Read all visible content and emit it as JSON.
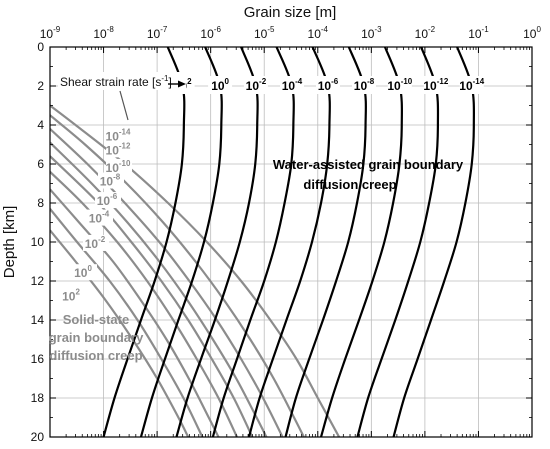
{
  "chart_data": {
    "type": "line",
    "title": "",
    "xlabel": "Grain size [m]",
    "ylabel": "Depth [km]",
    "x_scale": "log",
    "x_position": "top",
    "xlim": [
      1e-09,
      1
    ],
    "ylim": [
      0,
      20
    ],
    "y_inverted": true,
    "grid": true,
    "x_ticks": [
      {
        "base": "10",
        "exp": "-9"
      },
      {
        "base": "10",
        "exp": "-8"
      },
      {
        "base": "10",
        "exp": "-7"
      },
      {
        "base": "10",
        "exp": "-6"
      },
      {
        "base": "10",
        "exp": "-5"
      },
      {
        "base": "10",
        "exp": "-4"
      },
      {
        "base": "10",
        "exp": "-3"
      },
      {
        "base": "10",
        "exp": "-2"
      },
      {
        "base": "10",
        "exp": "-1"
      },
      {
        "base": "10",
        "exp": "0"
      }
    ],
    "y_ticks": [
      "0",
      "2",
      "4",
      "6",
      "8",
      "10",
      "12",
      "14",
      "16",
      "18",
      "20"
    ],
    "colors": {
      "water": "#000000",
      "solid": "#8c8c8c",
      "grid": "#bdbdbd"
    },
    "water_series_label": "Water-assisted grain boundary diffusion creep",
    "water_series_label_lines": [
      "Water-assisted grain boundary",
      "diffusion creep"
    ],
    "solid_series_label_lines": [
      "Solid-state",
      "grain boundary",
      "diffusion creep"
    ],
    "rate_annotation": {
      "text": "Shear strain rate [s",
      "sup": "-1",
      "close": "]"
    },
    "water_series": [
      {
        "rate": {
          "base": "10",
          "exp": "2"
        },
        "depth": [
          0,
          2,
          4,
          6,
          8,
          10,
          12,
          14,
          16,
          18,
          20
        ],
        "grain_size": [
          1.58e-07,
          3e-07,
          3.16e-07,
          2.9e-07,
          2.2e-07,
          1.5e-07,
          9e-08,
          5e-08,
          2.8e-08,
          1.6e-08,
          1e-08
        ]
      },
      {
        "rate": {
          "base": "10",
          "exp": "0"
        },
        "depth": [
          0,
          2,
          4,
          6,
          8,
          10,
          12,
          14,
          16,
          18,
          20
        ],
        "grain_size": [
          7.9e-07,
          1.5e-06,
          1.58e-06,
          1.45e-06,
          1.1e-06,
          7.5e-07,
          4.5e-07,
          2.5e-07,
          1.4e-07,
          8e-08,
          5e-08
        ]
      },
      {
        "rate": {
          "base": "10",
          "exp": "-2"
        },
        "depth": [
          0,
          2,
          4,
          6,
          8,
          10,
          12,
          14,
          16,
          18,
          20
        ],
        "grain_size": [
          3.7e-06,
          7e-06,
          7.4e-06,
          6.8e-06,
          5.2e-06,
          3.5e-06,
          2.1e-06,
          1.2e-06,
          6.6e-07,
          3.7e-07,
          2.3e-07
        ]
      },
      {
        "rate": {
          "base": "10",
          "exp": "-4"
        },
        "depth": [
          0,
          2,
          4,
          6,
          8,
          10,
          12,
          14,
          16,
          18,
          20
        ],
        "grain_size": [
          1.7e-05,
          3.3e-05,
          3.5e-05,
          3.2e-05,
          2.4e-05,
          1.65e-05,
          1e-05,
          5.5e-06,
          3.1e-06,
          1.75e-06,
          1.1e-06
        ]
      },
      {
        "rate": {
          "base": "10",
          "exp": "-6"
        },
        "depth": [
          0,
          2,
          4,
          6,
          8,
          10,
          12,
          14,
          16,
          18,
          20
        ],
        "grain_size": [
          8e-05,
          0.000155,
          0.000165,
          0.00015,
          0.000115,
          7.8e-05,
          4.7e-05,
          2.6e-05,
          1.45e-05,
          8.2e-06,
          5.2e-06
        ]
      },
      {
        "rate": {
          "base": "10",
          "exp": "-8"
        },
        "depth": [
          0,
          2,
          4,
          6,
          8,
          10,
          12,
          14,
          16,
          18,
          20
        ],
        "grain_size": [
          0.00038,
          0.00073,
          0.00078,
          0.00071,
          0.00054,
          0.00037,
          0.00022,
          0.000125,
          6.9e-05,
          3.9e-05,
          2.5e-05
        ]
      },
      {
        "rate": {
          "base": "10",
          "exp": "-10"
        },
        "depth": [
          0,
          2,
          4,
          6,
          8,
          10,
          12,
          14,
          16,
          18,
          20
        ],
        "grain_size": [
          0.0018,
          0.0034,
          0.0037,
          0.00335,
          0.00255,
          0.00175,
          0.00105,
          0.00059,
          0.000325,
          0.000185,
          0.000115
        ]
      },
      {
        "rate": {
          "base": "10",
          "exp": "-12"
        },
        "depth": [
          0,
          2,
          4,
          6,
          8,
          10,
          12,
          14,
          16,
          18,
          20
        ],
        "grain_size": [
          0.0085,
          0.016,
          0.0175,
          0.016,
          0.012,
          0.0082,
          0.0049,
          0.0028,
          0.00155,
          0.00087,
          0.00055
        ]
      },
      {
        "rate": {
          "base": "10",
          "exp": "-14"
        },
        "depth": [
          0,
          2,
          4,
          6,
          8,
          10,
          12,
          14,
          16,
          18,
          20
        ],
        "grain_size": [
          0.04,
          0.075,
          0.082,
          0.075,
          0.057,
          0.039,
          0.023,
          0.013,
          0.0073,
          0.0041,
          0.0026
        ]
      }
    ],
    "solid_series": [
      {
        "rate": {
          "base": "10",
          "exp": "-14"
        },
        "depth": [
          3,
          4,
          6,
          8,
          10,
          12,
          14,
          16,
          18,
          20
        ],
        "grain_size": [
          1e-09,
          3e-09,
          2.5e-08,
          1.6e-07,
          8.5e-07,
          3.7e-06,
          1.3e-05,
          4e-05,
          0.0001,
          0.00025
        ]
      },
      {
        "rate": {
          "base": "10",
          "exp": "-12"
        },
        "depth": [
          3.5,
          5,
          7,
          9,
          11,
          13,
          15,
          17,
          19,
          20
        ],
        "grain_size": [
          1e-09,
          4.5e-09,
          2.7e-08,
          1.3e-07,
          5.2e-07,
          1.8e-06,
          5.5e-06,
          1.5e-05,
          3.6e-05,
          5.5e-05
        ]
      },
      {
        "rate": {
          "base": "10",
          "exp": "-10"
        },
        "depth": [
          4.2,
          6,
          8,
          10,
          12,
          14,
          16,
          18,
          20
        ],
        "grain_size": [
          1e-09,
          5e-09,
          2.5e-08,
          1.1e-07,
          4e-07,
          1.3e-06,
          3.7e-06,
          9.5e-06,
          2.2e-05
        ]
      },
      {
        "rate": {
          "base": "10",
          "exp": "-8"
        },
        "depth": [
          4.9,
          7,
          9,
          11,
          13,
          15,
          17,
          19,
          20
        ],
        "grain_size": [
          1e-09,
          6e-09,
          2.8e-08,
          1.1e-07,
          3.7e-07,
          1.1e-06,
          3e-06,
          7.2e-06,
          1.1e-05
        ]
      },
      {
        "rate": {
          "base": "10",
          "exp": "-6"
        },
        "depth": [
          5.6,
          8,
          10,
          12,
          14,
          16,
          18,
          20
        ],
        "grain_size": [
          1e-09,
          8e-09,
          3.3e-08,
          1.2e-07,
          3.8e-07,
          1.05e-06,
          2.7e-06,
          6e-06
        ]
      },
      {
        "rate": {
          "base": "10",
          "exp": "-4"
        },
        "depth": [
          6.4,
          8,
          10,
          12,
          14,
          16,
          18,
          20
        ],
        "grain_size": [
          1e-09,
          4e-09,
          1.8e-08,
          6.5e-08,
          2e-07,
          5.5e-07,
          1.4e-06,
          3.1e-06
        ]
      },
      {
        "rate": {
          "base": "10",
          "exp": "-2"
        },
        "depth": [
          7.3,
          9,
          11,
          13,
          15,
          17,
          19,
          20
        ],
        "grain_size": [
          1e-09,
          3.5e-09,
          1.5e-08,
          5e-08,
          1.5e-07,
          3.9e-07,
          9.2e-07,
          1.4e-06
        ]
      },
      {
        "rate": {
          "base": "10",
          "exp": "0"
        },
        "depth": [
          8.3,
          10,
          12,
          14,
          16,
          18,
          20
        ],
        "grain_size": [
          1e-09,
          3.2e-09,
          1.3e-08,
          4.3e-08,
          1.2e-07,
          3.1e-07,
          7e-07
        ]
      },
      {
        "rate": {
          "base": "10",
          "exp": "2"
        },
        "depth": [
          9.4,
          11,
          13,
          15,
          17,
          19,
          20
        ],
        "grain_size": [
          1e-09,
          3e-09,
          1.1e-08,
          3.5e-08,
          1e-07,
          2.5e-07,
          3.8e-07
        ]
      }
    ]
  }
}
